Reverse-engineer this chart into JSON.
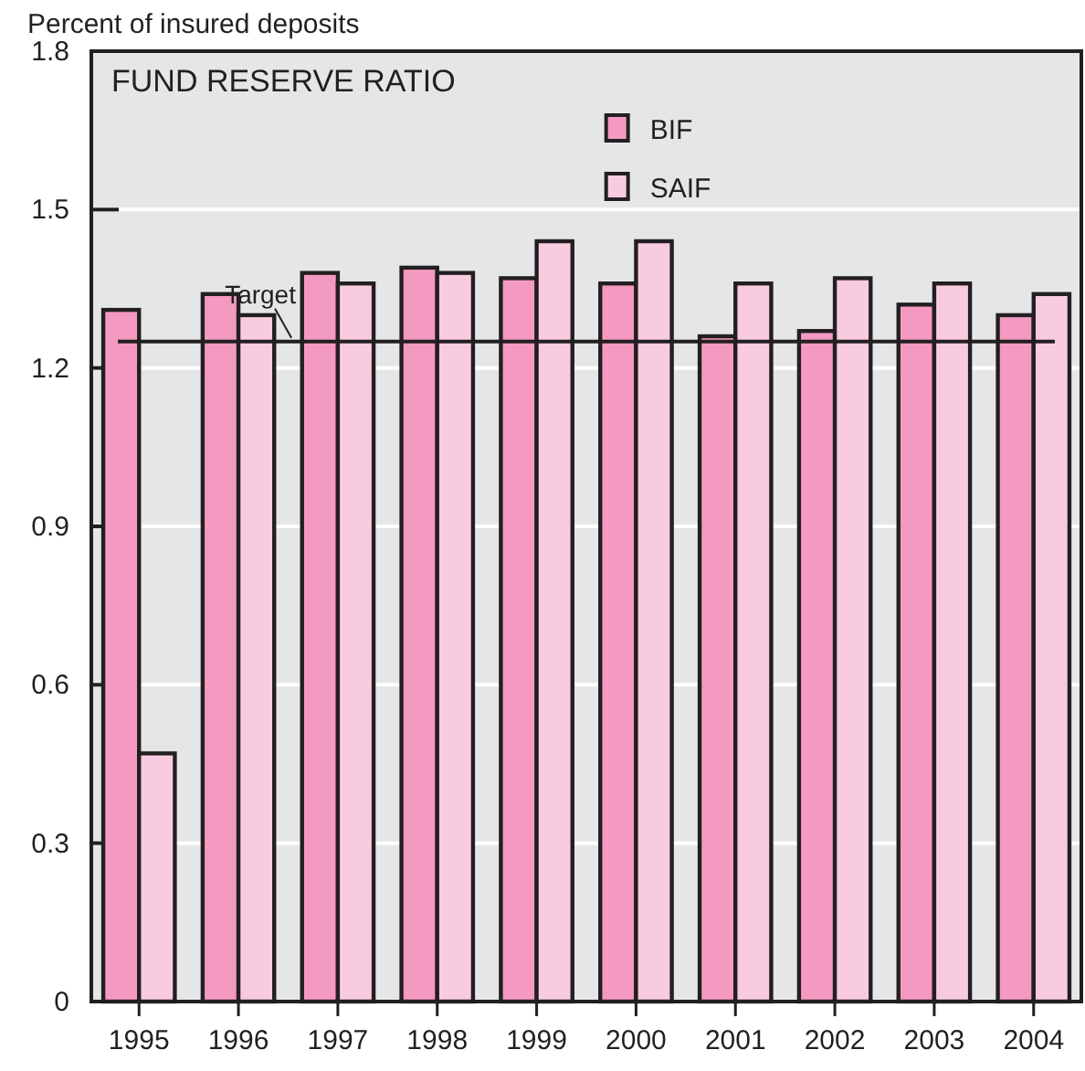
{
  "chart_data": {
    "type": "bar",
    "title": "FUND RESERVE RATIO",
    "ylabel": "Percent of insured deposits",
    "categories": [
      "1995",
      "1996",
      "1997",
      "1998",
      "1999",
      "2000",
      "2001",
      "2002",
      "2003",
      "2004"
    ],
    "series": [
      {
        "name": "BIF",
        "color": "#f49ac1",
        "values": [
          1.31,
          1.34,
          1.38,
          1.39,
          1.37,
          1.36,
          1.26,
          1.27,
          1.32,
          1.3
        ]
      },
      {
        "name": "SAIF",
        "color": "#f9cbe0",
        "values": [
          0.47,
          1.3,
          1.36,
          1.38,
          1.44,
          1.44,
          1.36,
          1.37,
          1.36,
          1.34
        ]
      }
    ],
    "ylim": [
      0,
      1.8
    ],
    "yticks": [
      0,
      0.3,
      0.6,
      0.9,
      1.2,
      1.5,
      1.8
    ],
    "grid": "y",
    "legend": "top",
    "ref_lines": [
      {
        "axis": "y",
        "value": 1.25,
        "label": "Target",
        "color": "#231f20"
      }
    ]
  }
}
